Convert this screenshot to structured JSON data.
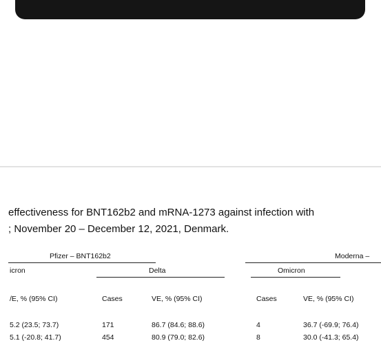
{
  "article_image": {
    "caption_lines": [
      "effectiveness for BNT162b2 and mRNA-1273 against infection with",
      "; November 20 – December 12, 2021, Denmark."
    ],
    "table": {
      "groups": [
        "Pfizer – BNT162b2",
        "Moderna –"
      ],
      "subgroups": [
        "icron",
        "Delta",
        "Omicron"
      ],
      "header": [
        "/E, % (95% CI)",
        "Cases",
        "VE, % (95% CI)",
        "Cases",
        "VE, % (95% CI)"
      ],
      "rows": [
        [
          "5.2 (23.5; 73.7)",
          "171",
          "86.7 (84.6; 88.6)",
          "4",
          "36.7 (-69.9; 76.4)"
        ],
        [
          "5.1 (-20.8; 41.7)",
          "454",
          "80.9 (79.0; 82.6)",
          "8",
          "30.0 (-41.3; 65.4)"
        ]
      ]
    }
  }
}
